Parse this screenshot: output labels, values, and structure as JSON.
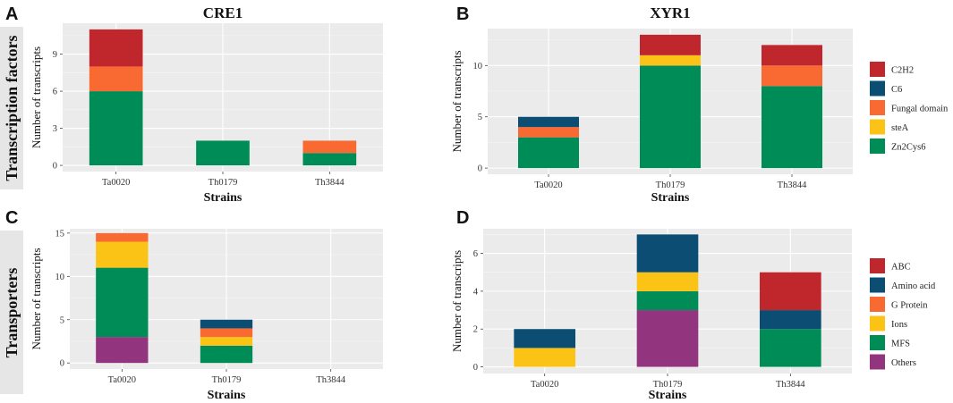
{
  "row_labels": [
    "Transcription factors",
    "Transporters"
  ],
  "colors": {
    "C2H2": "#c0272d",
    "C6": "#0c4d73",
    "Fungal domain": "#f96a32",
    "steA": "#fbc315",
    "Zn2Cys6": "#008c57",
    "ABC": "#c0272d",
    "Amino acid": "#0c4d73",
    "G Protein": "#f96a32",
    "Ions": "#fbc315",
    "MFS": "#008c57",
    "Others": "#93347f",
    "panel_bg": "#ebebeb",
    "grid_major": "#ffffff",
    "row_strip": "#e6e6e6"
  },
  "chart_data": [
    {
      "panel": "A",
      "type": "bar",
      "stacked": true,
      "title": "CRE1",
      "xlabel": "Strains",
      "ylabel": "Number of transcripts",
      "categories": [
        "Ta0020",
        "Th0179",
        "Th3844"
      ],
      "ylim": [
        -0.5,
        11.5
      ],
      "yticks": [
        0,
        3,
        6,
        9
      ],
      "series": [
        {
          "name": "Zn2Cys6",
          "values": [
            6,
            2,
            1
          ]
        },
        {
          "name": "Fungal domain",
          "values": [
            2,
            0,
            1
          ]
        },
        {
          "name": "C2H2",
          "values": [
            3,
            0,
            0
          ]
        }
      ]
    },
    {
      "panel": "B",
      "type": "bar",
      "stacked": true,
      "title": "XYR1",
      "xlabel": "Strains",
      "ylabel": "Number of transcripts",
      "categories": [
        "Ta0020",
        "Th0179",
        "Th3844"
      ],
      "ylim": [
        -0.6,
        13.6
      ],
      "yticks": [
        0,
        5,
        10
      ],
      "series": [
        {
          "name": "Zn2Cys6",
          "values": [
            3,
            10,
            8
          ]
        },
        {
          "name": "steA",
          "values": [
            0,
            1,
            0
          ]
        },
        {
          "name": "Fungal domain",
          "values": [
            1,
            0,
            2
          ]
        },
        {
          "name": "C6",
          "values": [
            1,
            0,
            0
          ]
        },
        {
          "name": "C2H2",
          "values": [
            0,
            2,
            2
          ]
        }
      ],
      "legend": [
        "C2H2",
        "C6",
        "Fungal domain",
        "steA",
        "Zn2Cys6"
      ],
      "legend_position": "right"
    },
    {
      "panel": "C",
      "type": "bar",
      "stacked": true,
      "title": "",
      "xlabel": "Strains",
      "ylabel": "Number of transcripts",
      "categories": [
        "Ta0020",
        "Th0179",
        "Th3844"
      ],
      "ylim": [
        -0.7,
        15.5
      ],
      "yticks": [
        0,
        5,
        10,
        15
      ],
      "series": [
        {
          "name": "Others",
          "values": [
            3,
            0,
            0
          ]
        },
        {
          "name": "MFS",
          "values": [
            8,
            2,
            0
          ]
        },
        {
          "name": "Ions",
          "values": [
            3,
            1,
            0
          ]
        },
        {
          "name": "G Protein",
          "values": [
            1,
            1,
            0
          ]
        },
        {
          "name": "Amino acid",
          "values": [
            0,
            1,
            0
          ]
        }
      ]
    },
    {
      "panel": "D",
      "type": "bar",
      "stacked": true,
      "title": "",
      "xlabel": "Strains",
      "ylabel": "Number of transcripts",
      "categories": [
        "Ta0020",
        "Th0179",
        "Th3844"
      ],
      "ylim": [
        -0.35,
        7.3
      ],
      "yticks": [
        0,
        2,
        4,
        6
      ],
      "series": [
        {
          "name": "Others",
          "values": [
            0,
            3,
            0
          ]
        },
        {
          "name": "MFS",
          "values": [
            0,
            1,
            2
          ]
        },
        {
          "name": "Ions",
          "values": [
            1,
            1,
            0
          ]
        },
        {
          "name": "Amino acid",
          "values": [
            1,
            2,
            1
          ]
        },
        {
          "name": "ABC",
          "values": [
            0,
            0,
            2
          ]
        }
      ],
      "legend": [
        "ABC",
        "Amino acid",
        "G Protein",
        "Ions",
        "MFS",
        "Others"
      ],
      "legend_position": "right"
    }
  ]
}
